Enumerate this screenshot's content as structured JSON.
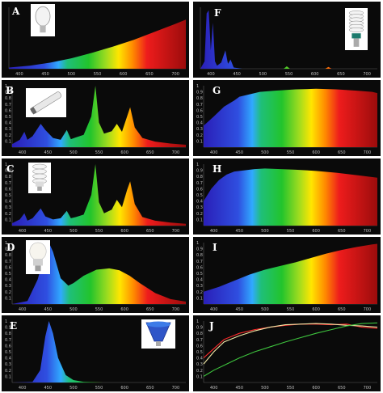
{
  "chart_data": [
    {
      "panel": "A",
      "type": "area",
      "x_range": [
        380,
        720
      ],
      "ylim": [
        0,
        1
      ],
      "xticks": [
        "400",
        "450",
        "500",
        "550",
        "600",
        "650",
        "700"
      ],
      "yticks": [],
      "icon": "incandescent-bulb-icon",
      "x": [
        380,
        420,
        460,
        500,
        540,
        580,
        620,
        660,
        700,
        720
      ],
      "values": [
        0.02,
        0.05,
        0.1,
        0.17,
        0.26,
        0.36,
        0.47,
        0.6,
        0.73,
        0.8
      ]
    },
    {
      "panel": "B",
      "type": "area",
      "x_range": [
        380,
        720
      ],
      "ylim": [
        0,
        1
      ],
      "xticks": [
        "400",
        "450",
        "500",
        "550",
        "600",
        "650",
        "700"
      ],
      "yticks": [
        "1",
        "0.9",
        "0.8",
        "0.7",
        "0.6",
        "0.5",
        "0.4",
        "0.3",
        "0.2",
        "0.1"
      ],
      "icon": "fluorescent-tube-icon",
      "x": [
        380,
        395,
        404,
        410,
        420,
        436,
        445,
        460,
        475,
        487,
        495,
        505,
        520,
        535,
        543,
        550,
        560,
        575,
        585,
        595,
        605,
        611,
        620,
        635,
        660,
        690,
        720
      ],
      "values": [
        0.05,
        0.12,
        0.25,
        0.12,
        0.18,
        0.38,
        0.28,
        0.15,
        0.12,
        0.28,
        0.13,
        0.16,
        0.2,
        0.5,
        1.0,
        0.4,
        0.22,
        0.26,
        0.38,
        0.25,
        0.5,
        0.65,
        0.32,
        0.15,
        0.09,
        0.06,
        0.04
      ]
    },
    {
      "panel": "C",
      "type": "area",
      "x_range": [
        380,
        720
      ],
      "ylim": [
        0,
        1
      ],
      "xticks": [
        "400",
        "450",
        "500",
        "550",
        "600",
        "650",
        "700"
      ],
      "yticks": [
        "1",
        "0.9",
        "0.8",
        "0.7",
        "0.6",
        "0.5",
        "0.4",
        "0.3",
        "0.2",
        "0.1"
      ],
      "icon": "cfl-bulb-icon",
      "x": [
        380,
        395,
        404,
        410,
        420,
        436,
        445,
        460,
        475,
        487,
        495,
        505,
        520,
        535,
        543,
        550,
        560,
        575,
        585,
        595,
        605,
        611,
        620,
        635,
        660,
        690,
        720
      ],
      "values": [
        0.04,
        0.1,
        0.2,
        0.08,
        0.12,
        0.28,
        0.15,
        0.1,
        0.12,
        0.24,
        0.12,
        0.14,
        0.18,
        0.5,
        1.0,
        0.38,
        0.2,
        0.26,
        0.42,
        0.3,
        0.58,
        0.72,
        0.35,
        0.14,
        0.08,
        0.05,
        0.03
      ]
    },
    {
      "panel": "D",
      "type": "area",
      "x_range": [
        380,
        720
      ],
      "ylim": [
        0,
        1
      ],
      "xticks": [
        "400",
        "450",
        "500",
        "550",
        "600",
        "650",
        "700"
      ],
      "yticks": [
        "1",
        "0.9",
        "0.8",
        "0.7",
        "0.6",
        "0.5",
        "0.4",
        "0.3",
        "0.2",
        "0.1"
      ],
      "icon": "led-bulb-icon",
      "x": [
        380,
        410,
        430,
        445,
        452,
        460,
        475,
        490,
        500,
        520,
        545,
        570,
        590,
        610,
        630,
        660,
        690,
        720
      ],
      "values": [
        0.0,
        0.05,
        0.4,
        0.85,
        1.0,
        0.85,
        0.42,
        0.3,
        0.34,
        0.46,
        0.56,
        0.58,
        0.55,
        0.46,
        0.34,
        0.18,
        0.08,
        0.04
      ]
    },
    {
      "panel": "E",
      "type": "area",
      "x_range": [
        380,
        720
      ],
      "ylim": [
        0,
        1
      ],
      "xticks": [
        "400",
        "450",
        "500",
        "550",
        "600",
        "650",
        "700"
      ],
      "yticks": [
        "1",
        "0.9",
        "0.8",
        "0.7",
        "0.6",
        "0.5",
        "0.4",
        "0.3",
        "0.2",
        "0.1"
      ],
      "icon": "blue-led-lamp-icon",
      "x": [
        380,
        420,
        435,
        445,
        452,
        460,
        470,
        485,
        500,
        520,
        560,
        720
      ],
      "values": [
        0.0,
        0.01,
        0.2,
        0.75,
        1.0,
        0.8,
        0.4,
        0.12,
        0.04,
        0.01,
        0.0,
        0.0
      ]
    },
    {
      "panel": "F",
      "type": "area",
      "x_range": [
        380,
        720
      ],
      "ylim": [
        0,
        1
      ],
      "xticks": [
        "400",
        "450",
        "500",
        "550",
        "600",
        "650",
        "700"
      ],
      "yticks": [],
      "icon": "spiral-cfl-icon",
      "x": [
        380,
        388,
        392,
        396,
        400,
        404,
        408,
        412,
        420,
        428,
        433,
        438,
        444,
        460,
        540,
        546,
        552,
        620,
        626,
        632,
        720
      ],
      "values": [
        0.0,
        0.12,
        0.9,
        0.95,
        0.3,
        0.75,
        0.12,
        0.05,
        0.1,
        0.3,
        0.08,
        0.15,
        0.02,
        0.0,
        0.0,
        0.04,
        0.0,
        0.0,
        0.03,
        0.0,
        0.0
      ]
    },
    {
      "panel": "G",
      "type": "area",
      "x_range": [
        380,
        720
      ],
      "ylim": [
        0,
        1
      ],
      "xticks": [
        "400",
        "450",
        "500",
        "550",
        "600",
        "650",
        "700"
      ],
      "yticks": [
        "1",
        "0.9",
        "0.8",
        "0.7",
        "0.6",
        "0.5",
        "0.4",
        "0.3",
        "0.2",
        "0.1"
      ],
      "icon": "",
      "x": [
        380,
        400,
        420,
        440,
        450,
        470,
        490,
        520,
        560,
        600,
        640,
        680,
        710,
        720
      ],
      "values": [
        0.35,
        0.5,
        0.66,
        0.76,
        0.82,
        0.86,
        0.9,
        0.92,
        0.94,
        0.95,
        0.94,
        0.92,
        0.9,
        0.88
      ]
    },
    {
      "panel": "H",
      "type": "area",
      "x_range": [
        380,
        720
      ],
      "ylim": [
        0,
        1
      ],
      "xticks": [
        "400",
        "450",
        "500",
        "550",
        "600",
        "650",
        "700"
      ],
      "yticks": [
        "1",
        "0.9",
        "0.8",
        "0.7",
        "0.6",
        "0.5",
        "0.4",
        "0.3",
        "0.2",
        "0.1"
      ],
      "icon": "",
      "x": [
        380,
        395,
        410,
        425,
        440,
        460,
        480,
        500,
        530,
        560,
        600,
        640,
        680,
        720
      ],
      "values": [
        0.4,
        0.6,
        0.74,
        0.83,
        0.88,
        0.9,
        0.92,
        0.93,
        0.92,
        0.91,
        0.89,
        0.86,
        0.82,
        0.78
      ]
    },
    {
      "panel": "I",
      "type": "area",
      "x_range": [
        380,
        720
      ],
      "ylim": [
        0,
        1
      ],
      "xticks": [
        "400",
        "450",
        "500",
        "550",
        "600",
        "650",
        "700"
      ],
      "yticks": [
        "1",
        "0.9",
        "0.8",
        "0.7",
        "0.6",
        "0.5",
        "0.4",
        "0.3",
        "0.2",
        "0.1"
      ],
      "icon": "",
      "x": [
        380,
        410,
        440,
        470,
        500,
        530,
        560,
        590,
        620,
        650,
        680,
        710,
        720
      ],
      "values": [
        0.2,
        0.28,
        0.38,
        0.48,
        0.56,
        0.62,
        0.68,
        0.75,
        0.82,
        0.88,
        0.93,
        0.97,
        0.98
      ]
    },
    {
      "panel": "J",
      "type": "line",
      "x_range": [
        380,
        720
      ],
      "ylim": [
        0,
        1
      ],
      "xticks": [
        "400",
        "450",
        "500",
        "550",
        "600",
        "650",
        "700"
      ],
      "yticks": [
        "1",
        "0.9",
        "0.8",
        "0.7",
        "0.6",
        "0.5",
        "0.4",
        "0.3",
        "0.2",
        "0.1"
      ],
      "icon": "",
      "x": [
        380,
        400,
        420,
        450,
        480,
        510,
        540,
        570,
        600,
        630,
        660,
        690,
        720
      ],
      "series": [
        {
          "color": "#ff2b2b",
          "values": [
            0.4,
            0.55,
            0.7,
            0.8,
            0.86,
            0.9,
            0.93,
            0.95,
            0.95,
            0.94,
            0.95,
            0.9,
            0.88
          ]
        },
        {
          "color": "#f2e9a8",
          "values": [
            0.3,
            0.5,
            0.66,
            0.76,
            0.84,
            0.9,
            0.94,
            0.95,
            0.96,
            0.95,
            0.93,
            0.92,
            0.9
          ]
        },
        {
          "color": "#3ec43e",
          "values": [
            0.1,
            0.2,
            0.28,
            0.4,
            0.5,
            0.58,
            0.66,
            0.73,
            0.8,
            0.86,
            0.92,
            0.96,
            0.97
          ]
        }
      ]
    }
  ]
}
